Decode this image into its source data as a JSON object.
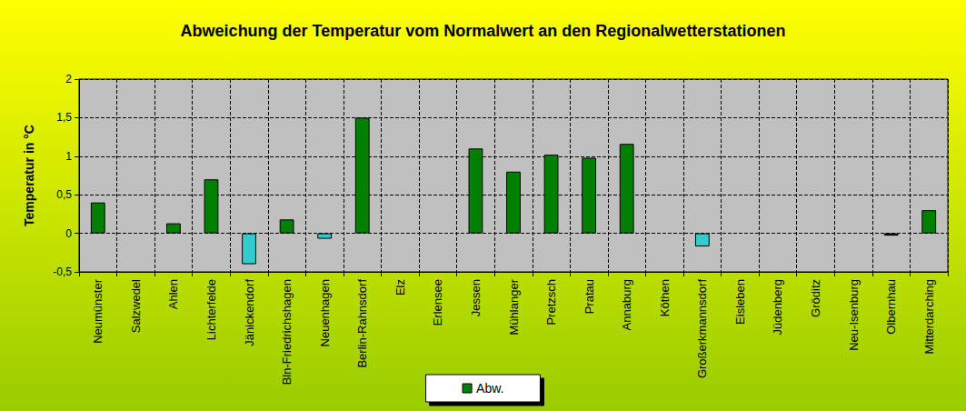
{
  "chart_data": {
    "type": "bar",
    "title": "Abweichung der Temperatur vom Normalwert an den Regionalwetterstationen",
    "y_label": "Temperatur in °C",
    "categories": [
      "Neumünster",
      "Salzwedel",
      "Ahlen",
      "Lichterfelde",
      "Jänickendorf",
      "Bln-Friedrichshagen",
      "Neuenhagen",
      "Berlin-Rahnsdorf",
      "Elz",
      "Erlensee",
      "Jessen",
      "Mühlanger",
      "Pretzsch",
      "Pratau",
      "Annaburg",
      "Köthen",
      "Großerkmannsdorf",
      "Eisleben",
      "Jüdenberg",
      "Gröditz",
      "Neu-Isenburg",
      "Olbernhau",
      "Mitterdarching"
    ],
    "series": [
      {
        "name": "Abw.",
        "values": [
          0.4,
          null,
          0.13,
          0.7,
          -0.4,
          0.18,
          -0.07,
          1.5,
          null,
          null,
          1.1,
          0.8,
          1.02,
          0.98,
          1.16,
          null,
          -0.17,
          null,
          null,
          null,
          null,
          -0.03,
          0.3
        ],
        "color": "#008000",
        "colors": [
          "#008000",
          null,
          "#008000",
          "#008000",
          "#33CCCC",
          "#008000",
          "#33CCCC",
          "#008000",
          null,
          null,
          "#008000",
          "#008000",
          "#008000",
          "#008000",
          "#008000",
          null,
          "#33CCCC",
          null,
          null,
          null,
          null,
          "#000000",
          "#008000"
        ]
      }
    ],
    "ylim": [
      -0.5,
      2
    ],
    "yticks": [
      {
        "value": -0.5,
        "label": "-0,5"
      },
      0,
      {
        "value": 0.5,
        "label": "0,5"
      },
      1,
      {
        "value": 1.5,
        "label": "1,5"
      },
      2
    ],
    "grid": true,
    "legend": "bottom"
  }
}
